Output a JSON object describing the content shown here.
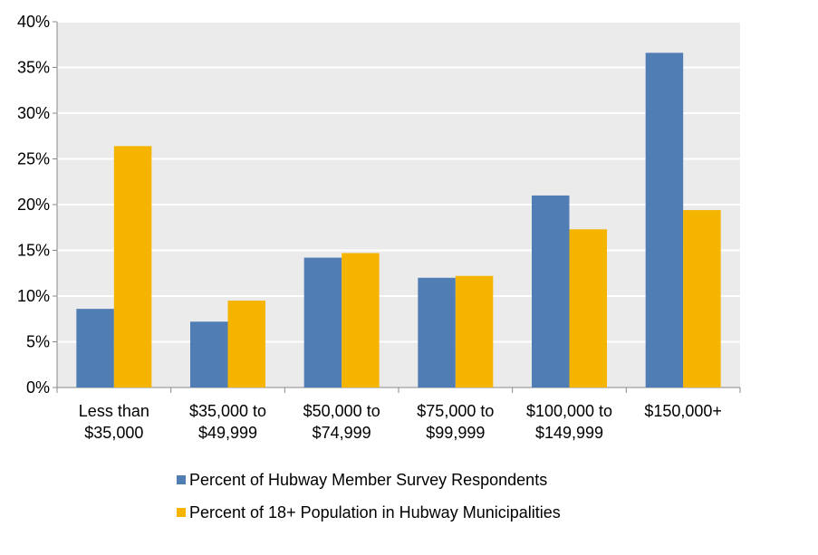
{
  "chart_data": {
    "type": "bar",
    "categories": [
      [
        "Less than",
        "$35,000"
      ],
      [
        "$35,000 to",
        "$49,999"
      ],
      [
        "$50,000 to",
        "$74,999"
      ],
      [
        "$75,000 to",
        "$99,999"
      ],
      [
        "$100,000 to",
        "$149,999"
      ],
      [
        "$150,000+"
      ]
    ],
    "series": [
      {
        "name": "Percent of Hubway Member Survey Respondents",
        "color": "#4F7DB4",
        "values": [
          8.6,
          7.2,
          14.2,
          12.0,
          21.0,
          36.6
        ]
      },
      {
        "name": "Percent of 18+ Population in Hubway Municipalities",
        "color": "#F5B400",
        "values": [
          26.4,
          9.5,
          14.7,
          12.2,
          17.3,
          19.4
        ]
      }
    ],
    "yticks": [
      "0%",
      "5%",
      "10%",
      "15%",
      "20%",
      "25%",
      "30%",
      "35%",
      "40%"
    ],
    "ylim": [
      0,
      40
    ],
    "grid": true,
    "plot_background": "#EBEBEB",
    "legend_position": "bottom",
    "title": "",
    "xlabel": "",
    "ylabel": ""
  }
}
